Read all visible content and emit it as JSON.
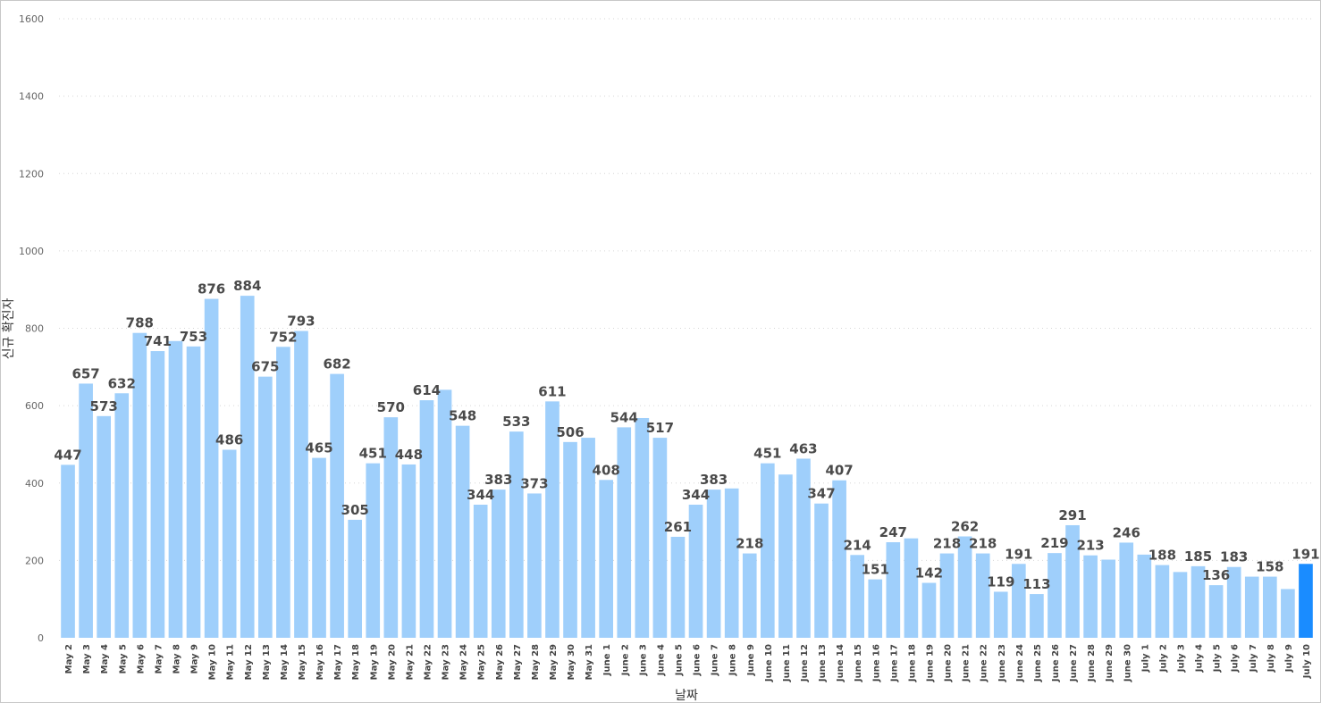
{
  "chart_data": {
    "type": "bar",
    "xlabel": "날짜",
    "ylabel": "신규 확진자",
    "ylim": [
      0,
      1600
    ],
    "yticks": [
      0,
      200,
      400,
      600,
      800,
      1000,
      1200,
      1400,
      1600
    ],
    "grid": true,
    "legend": "none",
    "colors": {
      "bar": "#9fcffb",
      "highlight": "#1a8cff"
    },
    "highlight_category": "July 10",
    "categories": [
      "May 2",
      "May 3",
      "May 4",
      "May 5",
      "May 6",
      "May 7",
      "May 8",
      "May 9",
      "May 10",
      "May 11",
      "May 12",
      "May 13",
      "May 14",
      "May 15",
      "May 16",
      "May 17",
      "May 18",
      "May 19",
      "May 20",
      "May 21",
      "May 22",
      "May 23",
      "May 24",
      "May 25",
      "May 26",
      "May 27",
      "May 28",
      "May 29",
      "May 30",
      "May 31",
      "June 1",
      "June 2",
      "June 3",
      "June 4",
      "June 5",
      "June 6",
      "June 7",
      "June 8",
      "June 9",
      "June 10",
      "June 11",
      "June 12",
      "June 13",
      "June 14",
      "June 15",
      "June 16",
      "June 17",
      "June 18",
      "June 19",
      "June 20",
      "June 21",
      "June 22",
      "June 23",
      "June 24",
      "June 25",
      "June 26",
      "June 27",
      "June 28",
      "June 29",
      "June 30",
      "July 1",
      "July 2",
      "July 3",
      "July 4",
      "July 5",
      "July 6",
      "July 7",
      "July 8",
      "July 9",
      "July 10"
    ],
    "values": [
      447,
      657,
      573,
      632,
      788,
      741,
      767,
      753,
      876,
      486,
      884,
      675,
      752,
      793,
      465,
      682,
      305,
      451,
      570,
      448,
      614,
      641,
      548,
      344,
      383,
      533,
      373,
      611,
      506,
      517,
      408,
      544,
      568,
      517,
      261,
      344,
      383,
      386,
      218,
      451,
      422,
      463,
      347,
      407,
      214,
      151,
      247,
      257,
      142,
      218,
      262,
      218,
      119,
      191,
      113,
      219,
      291,
      213,
      202,
      246,
      215,
      188,
      170,
      185,
      136,
      183,
      158,
      158,
      126,
      191
    ],
    "data_labels": [
      "447",
      "657",
      "573",
      "632",
      "788",
      "741",
      "",
      "753",
      "876",
      "486",
      "884",
      "675",
      "752",
      "793",
      "465",
      "682",
      "305",
      "451",
      "570",
      "448",
      "614",
      "",
      "548",
      "344",
      "383",
      "533",
      "373",
      "611",
      "506",
      "",
      "408",
      "544",
      "",
      "517",
      "261",
      "344",
      "383",
      "",
      "218",
      "451",
      "",
      "463",
      "347",
      "407",
      "214",
      "151",
      "247",
      "",
      "142",
      "218",
      "262",
      "218",
      "119",
      "191",
      "113",
      "219",
      "291",
      "213",
      "",
      "246",
      "",
      "188",
      "",
      "185",
      "136",
      "183",
      "",
      "158",
      "",
      "191"
    ]
  }
}
